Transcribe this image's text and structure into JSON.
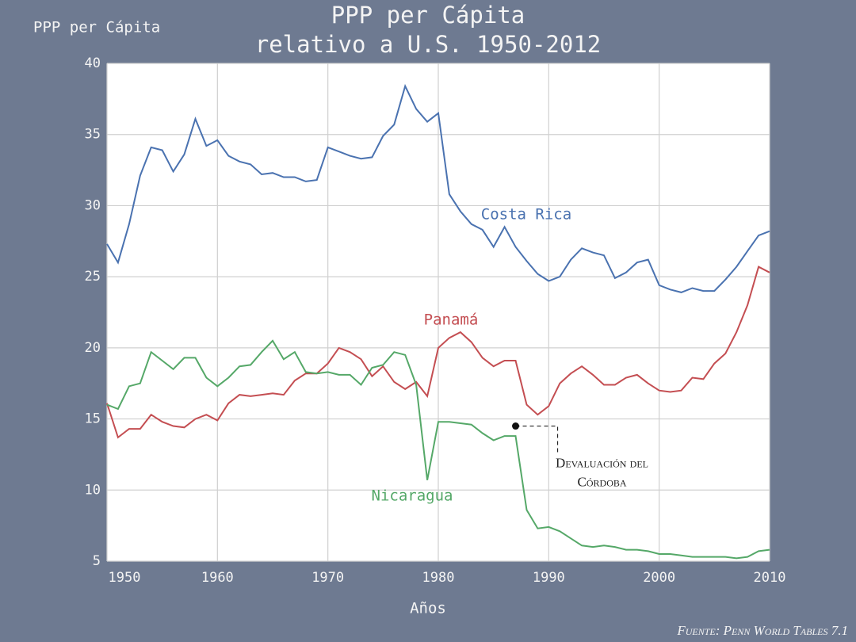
{
  "chart_data": {
    "type": "line",
    "title": [
      "PPP per Cápita",
      "relativo a U.S. 1950-2012"
    ],
    "y_label": "PPP per Cápita",
    "x_label": "Años",
    "source": "Fuente: Penn World Tables 7.1",
    "x": [
      1950,
      1951,
      1952,
      1953,
      1954,
      1955,
      1956,
      1957,
      1958,
      1959,
      1960,
      1961,
      1962,
      1963,
      1964,
      1965,
      1966,
      1967,
      1968,
      1969,
      1970,
      1971,
      1972,
      1973,
      1974,
      1975,
      1976,
      1977,
      1978,
      1979,
      1980,
      1981,
      1982,
      1983,
      1984,
      1985,
      1986,
      1987,
      1988,
      1989,
      1990,
      1991,
      1992,
      1993,
      1994,
      1995,
      1996,
      1997,
      1998,
      1999,
      2000,
      2001,
      2002,
      2003,
      2004,
      2005,
      2006,
      2007,
      2008,
      2009,
      2010
    ],
    "series": [
      {
        "name": "Costa Rica",
        "color": "#4a72b0",
        "values": [
          27.3,
          26.0,
          28.7,
          32.1,
          34.1,
          33.9,
          32.4,
          33.6,
          36.1,
          34.2,
          34.6,
          33.5,
          33.1,
          32.9,
          32.2,
          32.3,
          32.0,
          32.0,
          31.7,
          31.8,
          34.1,
          33.8,
          33.5,
          33.3,
          33.4,
          34.9,
          35.7,
          38.4,
          36.8,
          35.9,
          36.5,
          30.8,
          29.6,
          28.7,
          28.3,
          27.1,
          28.5,
          27.1,
          26.1,
          25.2,
          24.7,
          25.0,
          26.2,
          27.0,
          26.7,
          26.5,
          24.9,
          25.3,
          26.0,
          26.2,
          24.4,
          24.1,
          23.9,
          24.2,
          24.0,
          24.0,
          24.8,
          25.7,
          26.8,
          27.9,
          28.2
        ]
      },
      {
        "name": "Panamá",
        "color": "#c44e52",
        "values": [
          16.1,
          13.7,
          14.3,
          14.3,
          15.3,
          14.8,
          14.5,
          14.4,
          15.0,
          15.3,
          14.9,
          16.1,
          16.7,
          16.6,
          16.7,
          16.8,
          16.7,
          17.7,
          18.2,
          18.2,
          18.9,
          20.0,
          19.7,
          19.2,
          18.0,
          18.7,
          17.6,
          17.1,
          17.6,
          16.6,
          20.0,
          20.7,
          21.1,
          20.4,
          19.3,
          18.7,
          19.1,
          19.1,
          16.0,
          15.3,
          15.9,
          17.5,
          18.2,
          18.7,
          18.1,
          17.4,
          17.4,
          17.9,
          18.1,
          17.5,
          17.0,
          16.9,
          17.0,
          17.9,
          17.8,
          18.9,
          19.6,
          21.1,
          23.0,
          25.7,
          25.3
        ]
      },
      {
        "name": "Nicaragua",
        "color": "#55a868",
        "values": [
          16.0,
          15.7,
          17.3,
          17.5,
          19.7,
          19.1,
          18.5,
          19.3,
          19.3,
          17.9,
          17.3,
          17.9,
          18.7,
          18.8,
          19.7,
          20.5,
          19.2,
          19.7,
          18.3,
          18.2,
          18.3,
          18.1,
          18.1,
          17.4,
          18.6,
          18.8,
          19.7,
          19.5,
          17.4,
          10.7,
          14.8,
          14.8,
          14.7,
          14.6,
          14.0,
          13.5,
          13.8,
          13.8,
          8.6,
          7.3,
          7.4,
          7.1,
          6.6,
          6.1,
          6.0,
          6.1,
          6.0,
          5.8,
          5.8,
          5.7,
          5.5,
          5.5,
          5.4,
          5.3,
          5.3,
          5.3,
          5.3,
          5.2,
          5.3,
          5.7,
          5.8
        ]
      }
    ],
    "annotation": {
      "text": [
        "Devaluación del",
        "Córdoba"
      ],
      "x": 1987,
      "y": 14.5
    },
    "xlim": [
      1950,
      2010
    ],
    "xticks": [
      1950,
      1960,
      1970,
      1980,
      1990,
      2000,
      2010
    ],
    "ylim": [
      5,
      40
    ],
    "yticks": [
      5,
      10,
      15,
      20,
      25,
      30,
      35,
      40
    ],
    "grid": true
  }
}
